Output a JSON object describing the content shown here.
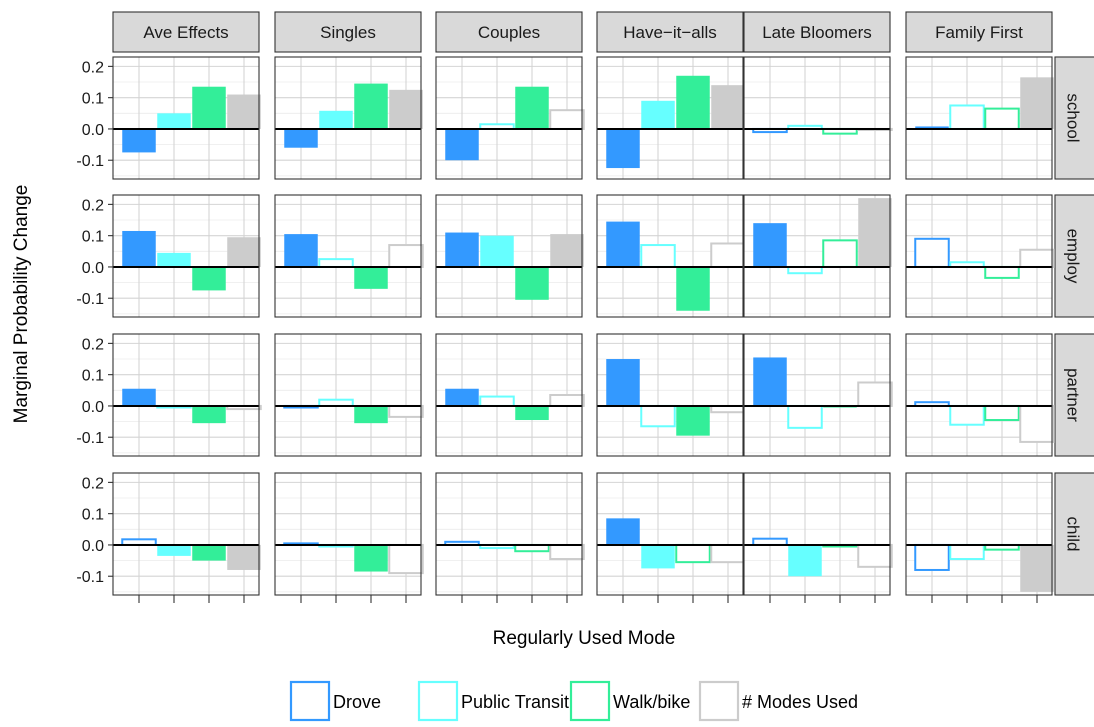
{
  "chart_data": {
    "type": "bar",
    "layout": "facet-grid",
    "xlabel": "Regularly Used Mode",
    "ylabel": "Marginal Probability Change",
    "ylim": [
      -0.16,
      0.23
    ],
    "yticks": [
      -0.1,
      0.0,
      0.1,
      0.2
    ],
    "ytick_labels": [
      "-0.1",
      "0.0",
      "0.1",
      "0.2"
    ],
    "grid": true,
    "legend_position": "bottom",
    "columns": [
      "Ave Effects",
      "Singles",
      "Couples",
      "Have−it−alls",
      "Late Bloomers",
      "Family First"
    ],
    "rows": [
      "school",
      "employ",
      "partner",
      "child"
    ],
    "series": [
      {
        "name": "Drove",
        "color": "#3399ff"
      },
      {
        "name": "Public Transit",
        "color": "#66ffff"
      },
      {
        "name": "Walk/bike",
        "color": "#33ee99"
      },
      {
        "name": "# Modes Used",
        "color": "#cccccc"
      }
    ],
    "values": {
      "school": [
        [
          -0.075,
          0.05,
          0.135,
          0.11
        ],
        [
          -0.06,
          0.058,
          0.145,
          0.125
        ],
        [
          -0.1,
          0.015,
          0.135,
          0.06
        ],
        [
          -0.125,
          0.09,
          0.17,
          0.14
        ],
        [
          -0.01,
          0.01,
          -0.015,
          0.0
        ],
        [
          0.008,
          0.075,
          0.065,
          0.165
        ]
      ],
      "employ": [
        [
          0.115,
          0.045,
          -0.075,
          0.095
        ],
        [
          0.105,
          0.025,
          -0.07,
          0.07
        ],
        [
          0.11,
          0.1,
          -0.105,
          0.105
        ],
        [
          0.145,
          0.07,
          -0.14,
          0.075
        ],
        [
          0.14,
          -0.02,
          0.085,
          0.22
        ],
        [
          0.09,
          0.015,
          -0.035,
          0.055
        ]
      ],
      "partner": [
        [
          0.055,
          -0.005,
          -0.055,
          -0.01
        ],
        [
          -0.005,
          0.02,
          -0.055,
          -0.035
        ],
        [
          0.055,
          0.03,
          -0.045,
          0.035
        ],
        [
          0.15,
          -0.065,
          -0.095,
          -0.02
        ],
        [
          0.155,
          -0.07,
          -0.005,
          0.075
        ],
        [
          0.012,
          -0.06,
          -0.045,
          -0.115
        ]
      ],
      "child": [
        [
          0.018,
          -0.035,
          -0.05,
          -0.08
        ],
        [
          0.005,
          -0.005,
          -0.085,
          -0.09
        ],
        [
          0.01,
          -0.01,
          -0.02,
          -0.045
        ],
        [
          0.085,
          -0.075,
          -0.055,
          -0.055
        ],
        [
          0.02,
          -0.1,
          -0.005,
          -0.07
        ],
        [
          -0.08,
          -0.045,
          -0.015,
          -0.15
        ]
      ]
    },
    "filled": {
      "school": [
        [
          true,
          true,
          true,
          true
        ],
        [
          true,
          true,
          true,
          true
        ],
        [
          true,
          false,
          true,
          false
        ],
        [
          true,
          true,
          true,
          true
        ],
        [
          false,
          false,
          false,
          false
        ],
        [
          true,
          false,
          false,
          true
        ]
      ],
      "employ": [
        [
          true,
          true,
          true,
          true
        ],
        [
          true,
          false,
          true,
          false
        ],
        [
          true,
          true,
          true,
          true
        ],
        [
          true,
          false,
          true,
          false
        ],
        [
          true,
          false,
          false,
          true
        ],
        [
          false,
          false,
          false,
          false
        ]
      ],
      "partner": [
        [
          true,
          false,
          true,
          false
        ],
        [
          false,
          false,
          true,
          false
        ],
        [
          true,
          false,
          true,
          false
        ],
        [
          true,
          false,
          true,
          false
        ],
        [
          true,
          false,
          true,
          false
        ],
        [
          false,
          false,
          false,
          false
        ]
      ],
      "child": [
        [
          false,
          true,
          true,
          true
        ],
        [
          false,
          false,
          true,
          false
        ],
        [
          false,
          false,
          false,
          false
        ],
        [
          true,
          true,
          false,
          false
        ],
        [
          false,
          true,
          false,
          false
        ],
        [
          false,
          false,
          false,
          true
        ]
      ]
    }
  }
}
